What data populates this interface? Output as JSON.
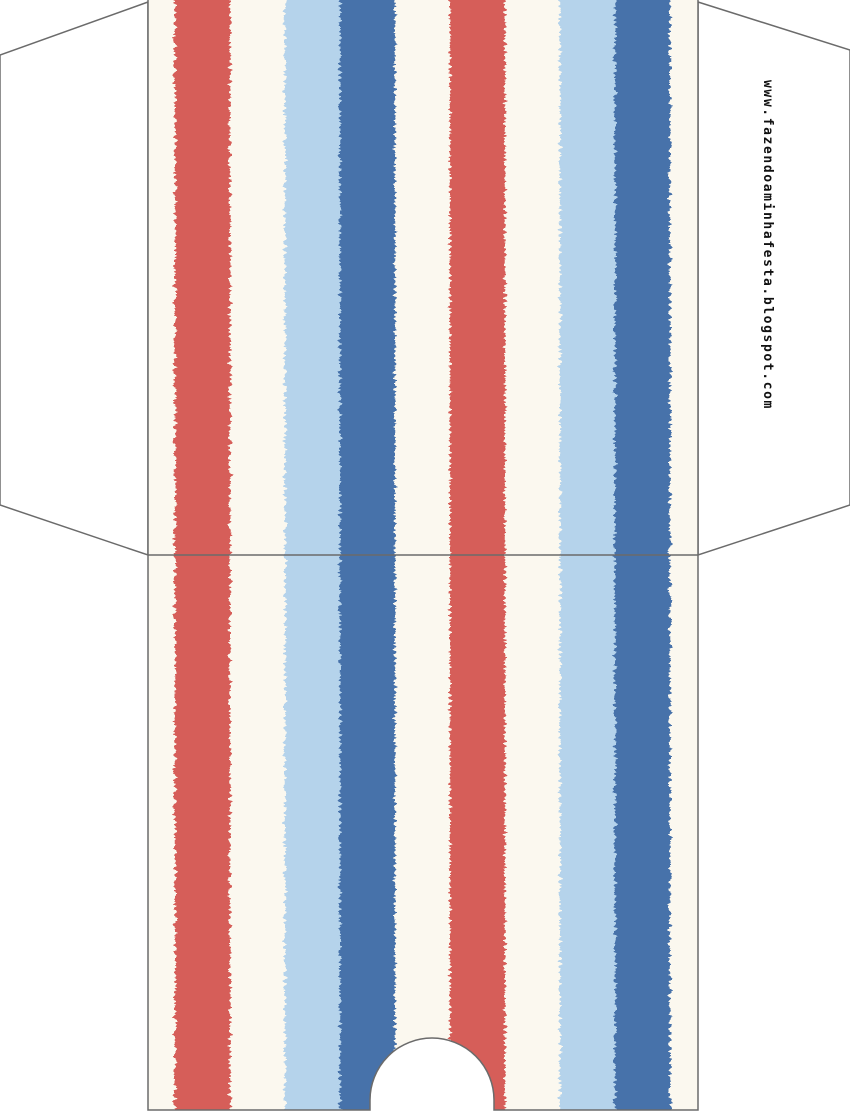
{
  "watermark": {
    "text": "www.fazendoaminhafesta.blogspot.com"
  },
  "colors": {
    "cream": "#fbf8ef",
    "red": "#d2504d",
    "light_blue": "#b1d1ea",
    "dark_blue": "#3766a4",
    "outline": "#6b6b6b"
  },
  "stripe_pattern": [
    "red",
    "cream",
    "light_blue",
    "dark_blue",
    "cream",
    "red",
    "cream",
    "light_blue",
    "dark_blue",
    "cream"
  ]
}
